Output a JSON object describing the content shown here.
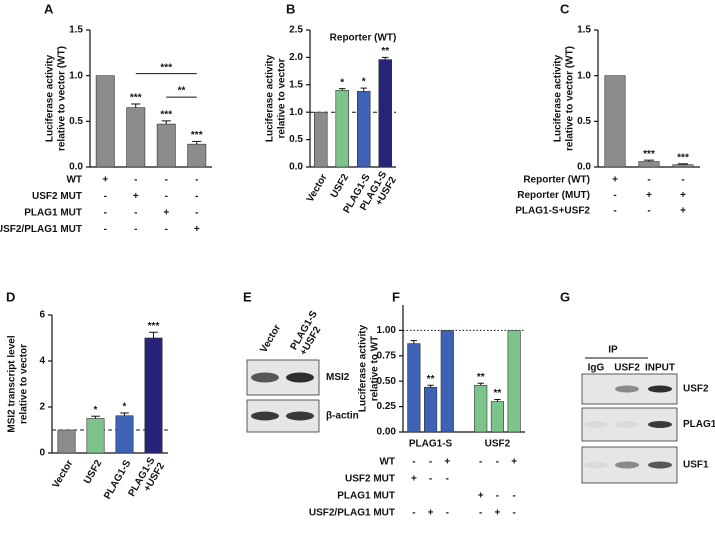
{
  "chart_data": [
    {
      "type": "bar",
      "panel": "A",
      "ylabel": [
        "Luciferase activity",
        "relative to vector (WT)"
      ],
      "values": [
        1.0,
        0.65,
        0.47,
        0.25
      ],
      "errors": [
        null,
        0.04,
        0.035,
        0.03
      ],
      "color": "#8c8c8c",
      "significance": [
        null,
        "***",
        "***",
        "***"
      ],
      "brackets": [
        {
          "from": 1,
          "to": 3,
          "label": "***"
        },
        {
          "from": 2,
          "to": 3,
          "label": "**"
        }
      ],
      "ylim": [
        0,
        1.5
      ],
      "yticks": [
        {
          "value": 0,
          "label": "0.0"
        },
        0.5,
        {
          "value": 1,
          "label": "1.0"
        },
        1.5
      ],
      "conditions": [
        {
          "label": "WT",
          "signs": [
            "+",
            "-",
            "-",
            "-"
          ]
        },
        {
          "label": "USF2 MUT",
          "signs": [
            "-",
            "+",
            "-",
            "-"
          ]
        },
        {
          "label": "PLAG1 MUT",
          "signs": [
            "-",
            "-",
            "+",
            "-"
          ]
        },
        {
          "label": "USF2/PLAG1 MUT",
          "signs": [
            "-",
            "-",
            "-",
            "+"
          ]
        }
      ]
    },
    {
      "type": "bar",
      "panel": "B",
      "title": "Reporter (WT)",
      "ylabel": [
        "Luciferase activity",
        "relative to vector"
      ],
      "categories": [
        "Vector",
        "USF2",
        "PLAG1-S",
        [
          "PLAG1-S",
          "+USF2"
        ]
      ],
      "values": [
        1.0,
        1.4,
        1.38,
        1.96
      ],
      "errors": [
        null,
        0.03,
        0.06,
        0.04
      ],
      "colors": [
        "#8c8c8c",
        "#7cc48b",
        "#3e63b6",
        "#26247a"
      ],
      "significance": [
        null,
        "*",
        "*",
        "**"
      ],
      "reference_line": 1.0,
      "ylim": [
        0,
        2.5
      ],
      "yticks": [
        {
          "value": 0,
          "label": "0.0"
        },
        0.5,
        {
          "value": 1,
          "label": "1.0"
        },
        1.5,
        {
          "value": 2,
          "label": "2.0"
        },
        2.5
      ]
    },
    {
      "type": "bar",
      "panel": "C",
      "ylabel": [
        "Luciferase activity",
        "relative to vector (WT)"
      ],
      "values": [
        1.0,
        0.06,
        0.025
      ],
      "errors": [
        null,
        0.015,
        0.01
      ],
      "color": "#8c8c8c",
      "significance": [
        null,
        "***",
        "***"
      ],
      "ylim": [
        0,
        1.5
      ],
      "yticks": [
        {
          "value": 0,
          "label": "0.0"
        },
        0.5,
        {
          "value": 1,
          "label": "1.0"
        },
        1.5
      ],
      "conditions": [
        {
          "label": "Reporter (WT)",
          "signs": [
            "+",
            "-",
            "-"
          ]
        },
        {
          "label": "Reporter (MUT)",
          "signs": [
            "-",
            "+",
            "+"
          ]
        },
        {
          "label": "PLAG1-S+USF2",
          "signs": [
            "-",
            "-",
            "+"
          ]
        }
      ]
    },
    {
      "type": "bar",
      "panel": "D",
      "ylabel": [
        "MSI2 transcript level",
        "relative to vector"
      ],
      "categories": [
        "Vector",
        "USF2",
        "PLAG1-S",
        [
          "PLAG1-S",
          "+USF2"
        ]
      ],
      "values": [
        1.0,
        1.5,
        1.62,
        5.0
      ],
      "errors": [
        null,
        0.1,
        0.12,
        0.25
      ],
      "colors": [
        "#8c8c8c",
        "#7cc48b",
        "#3e63b6",
        "#26247a"
      ],
      "significance": [
        null,
        "*",
        "*",
        "***"
      ],
      "reference_line": 1.0,
      "ylim": [
        0,
        6
      ],
      "yticks": [
        0,
        2,
        4,
        6
      ]
    },
    {
      "type": "grouped_bar",
      "panel": "F",
      "ylabel": [
        "Luciferase activity",
        "relative to WT"
      ],
      "groups": [
        {
          "name": "PLAG1-S",
          "color": "#3e63b6",
          "values": [
            0.87,
            0.44,
            1.0
          ],
          "errors": [
            0.03,
            0.02,
            null
          ],
          "significance": [
            null,
            "**",
            null
          ]
        },
        {
          "name": "USF2",
          "color": "#7cc48b",
          "values": [
            0.46,
            0.3,
            1.0
          ],
          "errors": [
            0.02,
            0.02,
            null
          ],
          "significance": [
            "**",
            "**",
            null
          ]
        }
      ],
      "reference_line": 1.0,
      "ylim": [
        0,
        1.25
      ],
      "yticks": [
        {
          "value": 0,
          "label": "0.00"
        },
        {
          "value": 0.25,
          "label": "0.25"
        },
        {
          "value": 0.5,
          "label": "0.50"
        },
        {
          "value": 0.75,
          "label": "0.75"
        },
        {
          "value": 1,
          "label": "1.00"
        }
      ],
      "conditions": [
        {
          "label": "WT",
          "signs": [
            "-",
            "-",
            "+",
            "-",
            "-",
            "+"
          ]
        },
        {
          "label": "USF2 MUT",
          "signs": [
            "+",
            "-",
            "-",
            null,
            null,
            null
          ]
        },
        {
          "label": "PLAG1 MUT",
          "signs": [
            null,
            null,
            null,
            "+",
            "-",
            "-"
          ]
        },
        {
          "label": "USF2/PLAG1 MUT",
          "signs": [
            "-",
            "+",
            "-",
            "-",
            "+",
            "-"
          ]
        }
      ]
    }
  ],
  "blots": [
    {
      "panel": "E",
      "lanes": [
        "Vector",
        [
          "PLAG1-S",
          "+USF2"
        ]
      ],
      "rows": [
        "MSI2",
        "β-actin"
      ]
    },
    {
      "panel": "G",
      "header": "IP",
      "lanes": [
        "IgG",
        "USF2",
        "INPUT"
      ],
      "rows": [
        "USF2",
        "PLAG1",
        "USF1"
      ]
    }
  ]
}
